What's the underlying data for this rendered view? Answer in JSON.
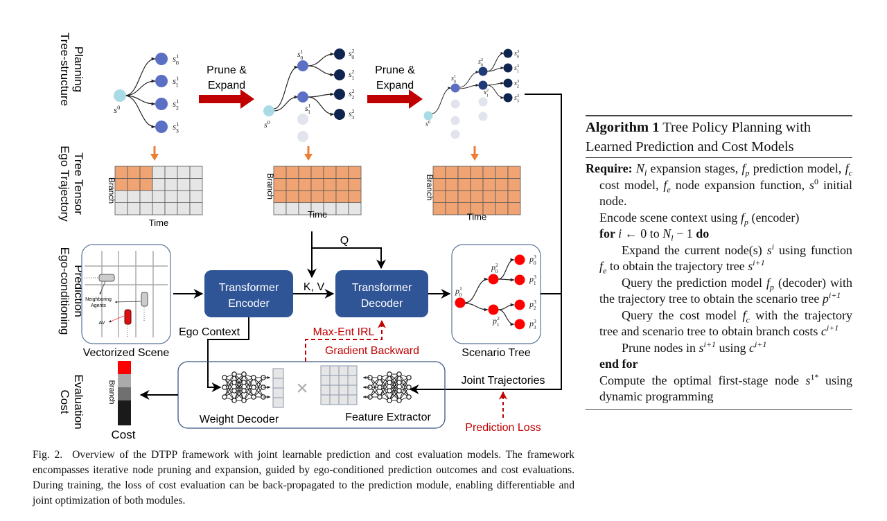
{
  "figure": {
    "row_labels": [
      [
        "Tree-structure",
        "Planning"
      ],
      [
        "Ego Trajectory",
        "Tree Tensor"
      ],
      [
        "Ego-conditioning",
        "Prediction"
      ],
      [
        "Cost",
        "Evaluation"
      ]
    ],
    "prune_expand": [
      "Prune &",
      "Expand"
    ],
    "tensor_axis": {
      "y": "Branch",
      "x": "Time"
    },
    "tree1_labels": [
      {
        "b": "s",
        "sub": "",
        "sup": "0"
      },
      {
        "b": "s",
        "sub": "0",
        "sup": "1"
      },
      {
        "b": "s",
        "sub": "1",
        "sup": "1"
      },
      {
        "b": "s",
        "sub": "2",
        "sup": "1"
      },
      {
        "b": "s",
        "sub": "3",
        "sup": "1"
      }
    ],
    "tree2_labels": [
      {
        "b": "s",
        "sub": "",
        "sup": "0"
      },
      {
        "b": "s",
        "sub": "0",
        "sup": "1"
      },
      {
        "b": "s",
        "sub": "1",
        "sup": "1"
      },
      {
        "b": "s",
        "sub": "0",
        "sup": "2"
      },
      {
        "b": "s",
        "sub": "1",
        "sup": "2"
      },
      {
        "b": "s",
        "sub": "2",
        "sup": "2"
      },
      {
        "b": "s",
        "sub": "3",
        "sup": "2"
      }
    ],
    "tree3_labels": [
      {
        "b": "s",
        "sub": "",
        "sup": "0"
      },
      {
        "b": "s",
        "sub": "0",
        "sup": "1"
      },
      {
        "b": "s",
        "sub": "0",
        "sup": "2"
      },
      {
        "b": "s",
        "sub": "1",
        "sup": "2"
      },
      {
        "b": "s",
        "sub": "0",
        "sup": "3"
      },
      {
        "b": "s",
        "sub": "1",
        "sup": "3"
      },
      {
        "b": "s",
        "sub": "2",
        "sup": "3"
      },
      {
        "b": "s",
        "sub": "3",
        "sup": "3"
      }
    ],
    "scenario_labels": [
      {
        "b": "p",
        "sub": "0",
        "sup": "1"
      },
      {
        "b": "p",
        "sub": "0",
        "sup": "2"
      },
      {
        "b": "p",
        "sub": "1",
        "sup": "2"
      },
      {
        "b": "p",
        "sub": "0",
        "sup": "3"
      },
      {
        "b": "p",
        "sub": "1",
        "sup": "3"
      },
      {
        "b": "p",
        "sub": "2",
        "sup": "3"
      },
      {
        "b": "p",
        "sub": "3",
        "sup": "3"
      }
    ],
    "scene": {
      "title": "Vectorized Scene",
      "neighbors": [
        "Neighboring",
        "Agents"
      ],
      "av": "AV"
    },
    "encoder": [
      "Transformer",
      "Encoder"
    ],
    "decoder": [
      "Transformer",
      "Decoder"
    ],
    "kv": "K, V",
    "q": "Q",
    "scenario_tree": "Scenario Tree",
    "ego_context": "Ego Context",
    "max_ent": "Max-Ent IRL",
    "gradient_backward": "Gradient Backward",
    "joint_trajectories": "Joint Trajectories",
    "prediction_loss": "Prediction Loss",
    "weight_decoder": "Weight Decoder",
    "feature_extractor": "Feature Extractor",
    "cost": "Cost",
    "cost_axis": "Branch",
    "multiply": "×",
    "colors": {
      "root": "#a8dbe6",
      "stage1": "#5b6fc4",
      "stage2": "#1f3a78",
      "stage3": "#0f2550",
      "pruned": "#e1e4ec",
      "tensor_fill": "#f0a473",
      "tensor_empty": "#e6e6e6",
      "block": "#2f5597",
      "arrow_red": "#c00000",
      "scenario_node": "#ff0000",
      "cost_bars": [
        "#ff0000",
        "#aaaaaa",
        "#707070",
        "#1a1a1a"
      ]
    }
  },
  "caption": {
    "label": "Fig. 2.",
    "text": "Overview of the DTPP framework with joint learnable prediction and cost evaluation models. The framework encompasses iterative node pruning and expansion, guided by ego-conditioned prediction outcomes and cost evaluations. During training, the loss of cost evaluation can be back-propagated to the prediction module, enabling differentiable and joint optimization of both modules."
  },
  "algorithm": {
    "label": "Algorithm 1",
    "title": "Tree Policy Planning with Learned Prediction and Cost Models",
    "lines": [
      {
        "indent": 0,
        "segs": [
          {
            "s": "b",
            "t": "Require: "
          },
          {
            "s": "i",
            "t": "N"
          },
          {
            "s": "sub",
            "t": "l"
          },
          {
            "t": " expansion stages, "
          },
          {
            "s": "i",
            "t": "f"
          },
          {
            "s": "sub",
            "t": "p"
          },
          {
            "t": " prediction model, "
          },
          {
            "s": "i",
            "t": "f"
          },
          {
            "s": "sub",
            "t": "c"
          },
          {
            "t": " cost model, "
          },
          {
            "s": "i",
            "t": "f"
          },
          {
            "s": "sub",
            "t": "e"
          },
          {
            "t": " node expansion function, "
          },
          {
            "s": "i",
            "t": "s"
          },
          {
            "s": "sup",
            "t": "0"
          },
          {
            "t": " initial node."
          }
        ]
      },
      {
        "indent": 1,
        "segs": [
          {
            "t": "Encode scene context using "
          },
          {
            "s": "i",
            "t": "f"
          },
          {
            "s": "sub",
            "t": "p"
          },
          {
            "t": " (encoder)"
          }
        ]
      },
      {
        "indent": 1,
        "segs": [
          {
            "s": "b",
            "t": "for "
          },
          {
            "s": "i",
            "t": "i"
          },
          {
            "t": " ← 0 to "
          },
          {
            "s": "i",
            "t": "N"
          },
          {
            "s": "sub",
            "t": "l"
          },
          {
            "t": " − 1 "
          },
          {
            "s": "b",
            "t": "do"
          }
        ]
      },
      {
        "indent": 2,
        "segs": [
          {
            "t": "Expand the current node(s) "
          },
          {
            "s": "i",
            "t": "s"
          },
          {
            "s": "sup",
            "t": "i"
          },
          {
            "t": " using function "
          },
          {
            "s": "i",
            "t": "f"
          },
          {
            "s": "sub",
            "t": "e"
          },
          {
            "t": " to obtain the trajectory tree "
          },
          {
            "s": "i",
            "t": "s"
          },
          {
            "s": "sup",
            "t": "i+1"
          }
        ]
      },
      {
        "indent": 2,
        "segs": [
          {
            "t": "Query the prediction model "
          },
          {
            "s": "i",
            "t": "f"
          },
          {
            "s": "sub",
            "t": "p"
          },
          {
            "t": " (decoder) with the trajectory tree to obtain the scenario tree "
          },
          {
            "s": "i",
            "t": "p"
          },
          {
            "s": "sup",
            "t": "i+1"
          }
        ]
      },
      {
        "indent": 2,
        "segs": [
          {
            "t": "Query the cost model "
          },
          {
            "s": "i",
            "t": "f"
          },
          {
            "s": "sub",
            "t": "c"
          },
          {
            "t": " with the trajectory tree and scenario tree to obtain branch costs "
          },
          {
            "s": "i",
            "t": "c"
          },
          {
            "s": "sup",
            "t": "i+1"
          }
        ]
      },
      {
        "indent": 2,
        "segs": [
          {
            "t": "Prune nodes in "
          },
          {
            "s": "i",
            "t": "s"
          },
          {
            "s": "sup",
            "t": "i+1"
          },
          {
            "t": " using "
          },
          {
            "s": "i",
            "t": "c"
          },
          {
            "s": "sup",
            "t": "i+1"
          }
        ]
      },
      {
        "indent": 1,
        "segs": [
          {
            "s": "b",
            "t": "end for"
          }
        ]
      },
      {
        "indent": 1,
        "segs": [
          {
            "t": "Compute the optimal first-stage node "
          },
          {
            "s": "i",
            "t": "s"
          },
          {
            "s": "sup",
            "t": "1*"
          },
          {
            "t": " using dynamic programming"
          }
        ]
      }
    ]
  }
}
